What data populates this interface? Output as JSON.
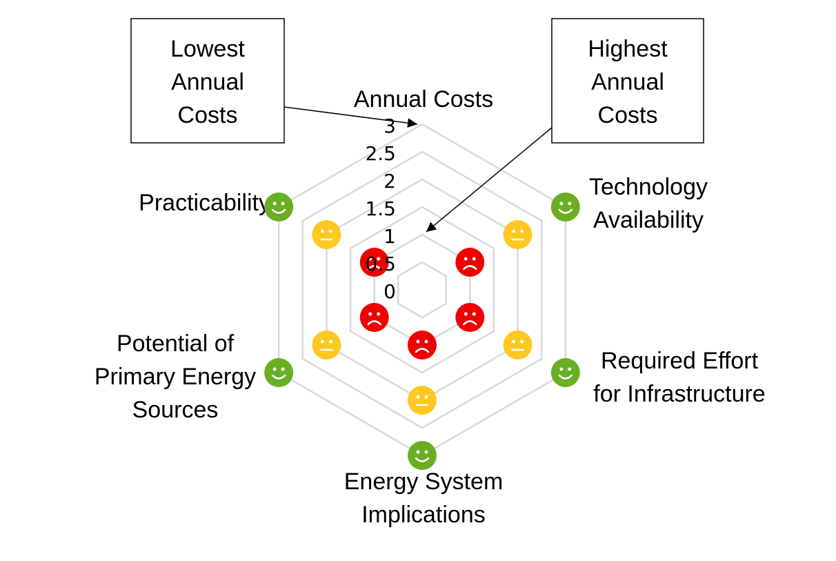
{
  "chart_data": {
    "type": "radar",
    "axes": [
      [
        "Annual Costs"
      ],
      [
        "Technology",
        "Availability"
      ],
      [
        "Required Effort",
        "for Infrastructure"
      ],
      [
        "Energy System",
        "Implications"
      ],
      [
        "Potential of",
        "Primary Energy",
        "Sources"
      ],
      [
        "Practicability"
      ]
    ],
    "rlim": [
      0,
      3
    ],
    "rticks": [
      0,
      0.5,
      1,
      1.5,
      2,
      2.5,
      3
    ],
    "grid": true,
    "series": [
      {
        "color": "#6aaf23",
        "marker": "happy",
        "values": [
          null,
          3,
          3,
          3,
          3,
          3
        ]
      },
      {
        "color": "#ffc822",
        "marker": "neutral",
        "values": [
          null,
          2,
          2,
          2,
          2,
          2
        ]
      },
      {
        "color": "#f00000",
        "marker": "sad",
        "values": [
          null,
          1,
          1,
          1,
          1,
          1
        ]
      }
    ],
    "annotations": [
      {
        "lines": [
          "Lowest",
          "Annual",
          "Costs"
        ],
        "axis": 0,
        "value": 3
      },
      {
        "lines": [
          "Highest",
          "Annual",
          "Costs"
        ],
        "axis": 0,
        "value": 1
      }
    ]
  }
}
